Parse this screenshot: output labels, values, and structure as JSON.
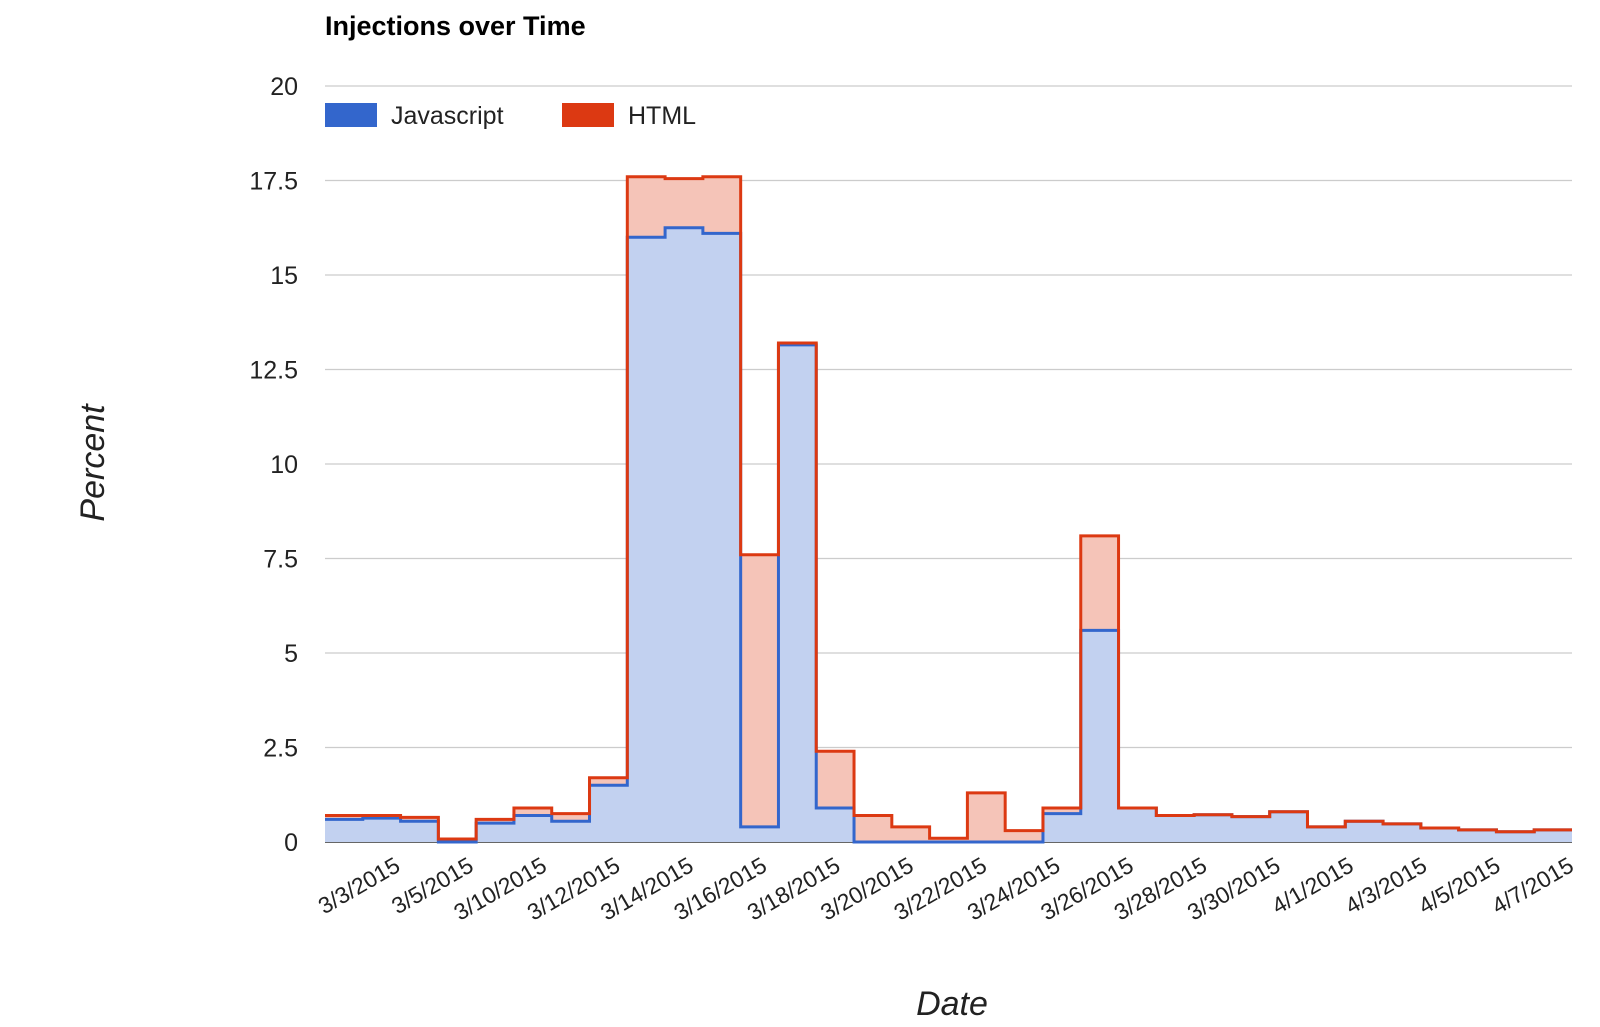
{
  "chart_data": {
    "type": "area",
    "stacked": true,
    "stepped": true,
    "title": "Injections over Time",
    "xlabel": "Date",
    "ylabel": "Percent",
    "ylim": [
      0,
      20
    ],
    "yticks": [
      "0",
      "2.5",
      "5",
      "7.5",
      "10",
      "12.5",
      "15",
      "17.5",
      "20"
    ],
    "x": [
      "3/3/2015",
      "3/4/2015",
      "3/5/2015",
      "3/9/2015",
      "3/10/2015",
      "3/11/2015",
      "3/12/2015",
      "3/13/2015",
      "3/14/2015",
      "3/15/2015",
      "3/16/2015",
      "3/17/2015",
      "3/18/2015",
      "3/19/2015",
      "3/20/2015",
      "3/21/2015",
      "3/22/2015",
      "3/23/2015",
      "3/24/2015",
      "3/25/2015",
      "3/26/2015",
      "3/27/2015",
      "3/28/2015",
      "3/29/2015",
      "3/30/2015",
      "3/31/2015",
      "4/1/2015",
      "4/2/2015",
      "4/3/2015",
      "4/4/2015",
      "4/5/2015",
      "4/6/2015",
      "4/7/2015"
    ],
    "xtick_labels": [
      "3/3/2015",
      "3/5/2015",
      "3/10/2015",
      "3/12/2015",
      "3/14/2015",
      "3/16/2015",
      "3/18/2015",
      "3/20/2015",
      "3/22/2015",
      "3/24/2015",
      "3/26/2015",
      "3/28/2015",
      "3/30/2015",
      "4/1/2015",
      "4/3/2015",
      "4/5/2015",
      "4/7/2015"
    ],
    "legend_position": "top-left",
    "series": [
      {
        "name": "Javascript",
        "color": "#3366cc",
        "fill": "#c2d1f0",
        "values": [
          0.6,
          0.63,
          0.55,
          0.0,
          0.5,
          0.7,
          0.55,
          1.5,
          16.0,
          16.25,
          16.1,
          0.4,
          13.15,
          0.9,
          0.0,
          0.0,
          0.0,
          0.0,
          0.0,
          0.75,
          5.6,
          0.9,
          0.7,
          0.72,
          0.67,
          0.8,
          0.4,
          0.55,
          0.48,
          0.37,
          0.32,
          0.27,
          0.32
        ]
      },
      {
        "name": "HTML",
        "color": "#dc3912",
        "fill": "#f5c4b8",
        "values": [
          0.1,
          0.07,
          0.1,
          0.08,
          0.1,
          0.2,
          0.2,
          0.2,
          1.6,
          1.3,
          1.5,
          7.2,
          0.05,
          1.5,
          0.7,
          0.4,
          0.1,
          1.3,
          0.3,
          0.15,
          2.5,
          0.0,
          0.0,
          0.0,
          0.0,
          0.0,
          0.0,
          0.0,
          0.0,
          0.0,
          0.0,
          0.0,
          0.0
        ]
      }
    ]
  }
}
